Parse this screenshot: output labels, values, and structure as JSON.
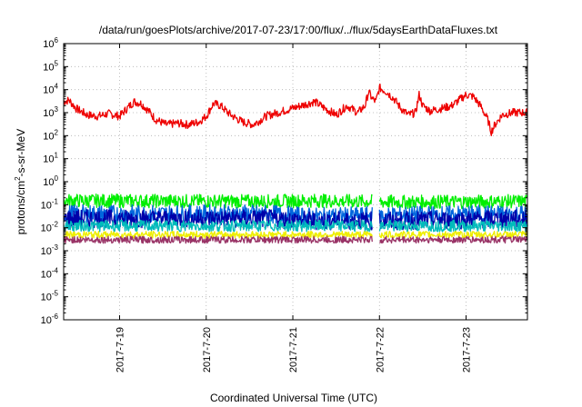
{
  "chart_data": {
    "type": "line",
    "title": "/data/run/goesPlots/archive/2017-07-23/17:00/flux/../flux/5daysEarthDataFluxes.txt",
    "xlabel": "Coordinated Universal Time (UTC)",
    "ylabel": "protons/cm²-s-sr-MeV",
    "ylabel_parts": {
      "pre": "protons/cm",
      "sup": "2",
      "post": "-s-sr-MeV"
    },
    "yscale": "log",
    "ylim": [
      1e-06,
      1000000.0
    ],
    "xlim": [
      "2017-07-18 08:30",
      "2017-07-23 17:00"
    ],
    "grid": true,
    "y_ticks": [
      {
        "exp": -6,
        "base": "10",
        "sup": "-6"
      },
      {
        "exp": -5,
        "base": "10",
        "sup": "-5"
      },
      {
        "exp": -4,
        "base": "10",
        "sup": "-4"
      },
      {
        "exp": -3,
        "base": "10",
        "sup": "-3"
      },
      {
        "exp": -2,
        "base": "10",
        "sup": "-2"
      },
      {
        "exp": -1,
        "base": "10",
        "sup": "-1"
      },
      {
        "exp": 0,
        "base": "10",
        "sup": "0"
      },
      {
        "exp": 1,
        "base": "10",
        "sup": "1"
      },
      {
        "exp": 2,
        "base": "10",
        "sup": "2"
      },
      {
        "exp": 3,
        "base": "10",
        "sup": "3"
      },
      {
        "exp": 4,
        "base": "10",
        "sup": "4"
      },
      {
        "exp": 5,
        "base": "10",
        "sup": "5"
      },
      {
        "exp": 6,
        "base": "10",
        "sup": "6"
      }
    ],
    "x_ticks": [
      {
        "label": "2017-7-19",
        "value": "2017-07-19 00:00"
      },
      {
        "label": "2017-7-20",
        "value": "2017-07-20 00:00"
      },
      {
        "label": "2017-7-21",
        "value": "2017-07-21 00:00"
      },
      {
        "label": "2017-7-22",
        "value": "2017-07-22 00:00"
      },
      {
        "label": "2017-7-23",
        "value": "2017-07-23 00:00"
      }
    ],
    "series": [
      {
        "color": "#ee0000",
        "noise": 0.18,
        "gaps": [],
        "points": [
          [
            "2017-07-18 08:30",
            3000
          ],
          [
            "2017-07-18 10:00",
            3500
          ],
          [
            "2017-07-18 12:00",
            1500
          ],
          [
            "2017-07-18 15:00",
            800
          ],
          [
            "2017-07-18 18:00",
            700
          ],
          [
            "2017-07-18 21:00",
            900
          ],
          [
            "2017-07-19 00:00",
            700
          ],
          [
            "2017-07-19 02:00",
            1500
          ],
          [
            "2017-07-19 04:00",
            3000
          ],
          [
            "2017-07-19 06:00",
            2500
          ],
          [
            "2017-07-19 08:00",
            1200
          ],
          [
            "2017-07-19 10:00",
            500
          ],
          [
            "2017-07-19 13:00",
            300
          ],
          [
            "2017-07-19 16:00",
            350
          ],
          [
            "2017-07-19 19:00",
            300
          ],
          [
            "2017-07-19 22:00",
            400
          ],
          [
            "2017-07-20 00:00",
            700
          ],
          [
            "2017-07-20 02:00",
            2500
          ],
          [
            "2017-07-20 04:00",
            2000
          ],
          [
            "2017-07-20 06:00",
            1000
          ],
          [
            "2017-07-20 08:00",
            600
          ],
          [
            "2017-07-20 10:00",
            400
          ],
          [
            "2017-07-20 13:00",
            300
          ],
          [
            "2017-07-20 16:00",
            600
          ],
          [
            "2017-07-20 16:30",
            700
          ],
          [
            "2017-07-21 06:00",
            3000
          ],
          [
            "2017-07-21 09:00",
            1500
          ],
          [
            "2017-07-21 12:00",
            800
          ],
          [
            "2017-07-21 15:00",
            2000
          ],
          [
            "2017-07-21 18:00",
            1000
          ],
          [
            "2017-07-21 20:00",
            2000
          ],
          [
            "2017-07-21 21:00",
            8000
          ],
          [
            "2017-07-21 22:00",
            4000
          ],
          [
            "2017-07-21 23:00",
            3000
          ],
          [
            "2017-07-22 00:00",
            12000
          ],
          [
            "2017-07-22 02:00",
            8000
          ],
          [
            "2017-07-22 04:00",
            4000
          ],
          [
            "2017-07-22 06:00",
            1500
          ],
          [
            "2017-07-22 08:00",
            800
          ],
          [
            "2017-07-22 10:00",
            1000
          ],
          [
            "2017-07-22 11:00",
            6000
          ],
          [
            "2017-07-22 12:00",
            2000
          ],
          [
            "2017-07-22 14:00",
            1200
          ],
          [
            "2017-07-22 17:00",
            1500
          ],
          [
            "2017-07-22 20:00",
            2000
          ],
          [
            "2017-07-23 00:00",
            6000
          ],
          [
            "2017-07-23 02:00",
            5000
          ],
          [
            "2017-07-23 04:00",
            2000
          ],
          [
            "2017-07-23 06:00",
            500
          ],
          [
            "2017-07-23 07:00",
            150
          ],
          [
            "2017-07-23 08:00",
            300
          ],
          [
            "2017-07-23 10:00",
            800
          ],
          [
            "2017-07-23 13:00",
            1000
          ],
          [
            "2017-07-23 17:00",
            1000
          ]
        ]
      },
      {
        "color": "#00ee00",
        "noise": 0.3,
        "gaps": [
          [
            "2017-07-21 22:00",
            "2017-07-22 00:00"
          ]
        ],
        "points": [
          [
            "2017-07-18 08:30",
            0.15
          ],
          [
            "2017-07-20 16:30",
            0.14
          ],
          [
            "2017-07-21 06:00",
            0.15
          ],
          [
            "2017-07-22 06:00",
            0.13
          ],
          [
            "2017-07-23 17:00",
            0.14
          ]
        ]
      },
      {
        "color": "#0066dd",
        "noise": 0.4,
        "gaps": [
          [
            "2017-07-21 22:00",
            "2017-07-22 00:00"
          ]
        ],
        "points": [
          [
            "2017-07-18 08:30",
            0.04
          ],
          [
            "2017-07-20 16:30",
            0.04
          ],
          [
            "2017-07-21 06:00",
            0.03
          ],
          [
            "2017-07-22 06:00",
            0.035
          ],
          [
            "2017-07-23 17:00",
            0.04
          ]
        ]
      },
      {
        "color": "#0000aa",
        "noise": 0.4,
        "gaps": [
          [
            "2017-07-21 22:00",
            "2017-07-22 00:00"
          ]
        ],
        "points": [
          [
            "2017-07-18 08:30",
            0.025
          ],
          [
            "2017-07-20 16:30",
            0.025
          ],
          [
            "2017-07-21 06:00",
            0.02
          ],
          [
            "2017-07-22 06:00",
            0.02
          ],
          [
            "2017-07-23 17:00",
            0.025
          ]
        ]
      },
      {
        "color": "#00bbbb",
        "noise": 0.25,
        "gaps": [
          [
            "2017-07-21 22:00",
            "2017-07-22 00:00"
          ]
        ],
        "points": [
          [
            "2017-07-18 08:30",
            0.012
          ],
          [
            "2017-07-23 17:00",
            0.012
          ]
        ]
      },
      {
        "color": "#eeee00",
        "noise": 0.15,
        "gaps": [
          [
            "2017-07-21 22:00",
            "2017-07-22 00:00"
          ]
        ],
        "points": [
          [
            "2017-07-18 08:30",
            0.005
          ],
          [
            "2017-07-23 17:00",
            0.005
          ]
        ]
      },
      {
        "color": "#993366",
        "noise": 0.15,
        "gaps": [
          [
            "2017-07-21 22:00",
            "2017-07-22 00:00"
          ]
        ],
        "points": [
          [
            "2017-07-18 08:30",
            0.003
          ],
          [
            "2017-07-23 17:00",
            0.003
          ]
        ]
      }
    ]
  }
}
